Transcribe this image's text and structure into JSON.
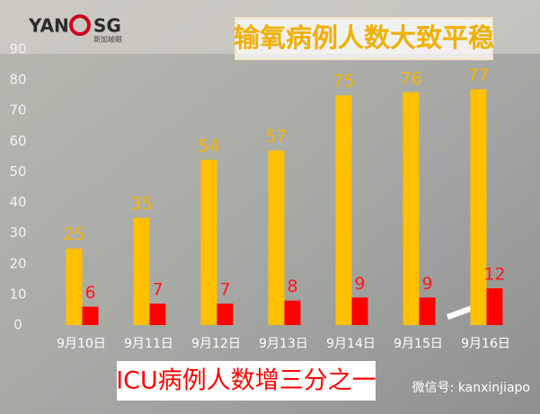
{
  "chart_data": {
    "type": "bar",
    "title": "输氧病例人数大致平稳",
    "subtitle": "ICU病例人数增三分之一",
    "brand": {
      "left": "YAN",
      "right": "SG",
      "sub": "新加坡眼"
    },
    "watermark": "微信号: kanxinjiapo",
    "categories": [
      "9月10日",
      "9月11日",
      "9月12日",
      "9月13日",
      "9月14日",
      "9月15日",
      "9月16日"
    ],
    "series": [
      {
        "color": "#ffc000",
        "label_color": "#f5b400",
        "values": [
          25,
          35,
          54,
          57,
          75,
          76,
          77
        ]
      },
      {
        "color": "#ff0000",
        "label_color": "#ff1a1a",
        "values": [
          6,
          7,
          7,
          8,
          9,
          9,
          12
        ]
      }
    ],
    "ylim": [
      0,
      90
    ],
    "yticks": [
      0,
      10,
      20,
      30,
      40,
      50,
      60,
      70,
      80,
      90
    ],
    "grid": false
  }
}
